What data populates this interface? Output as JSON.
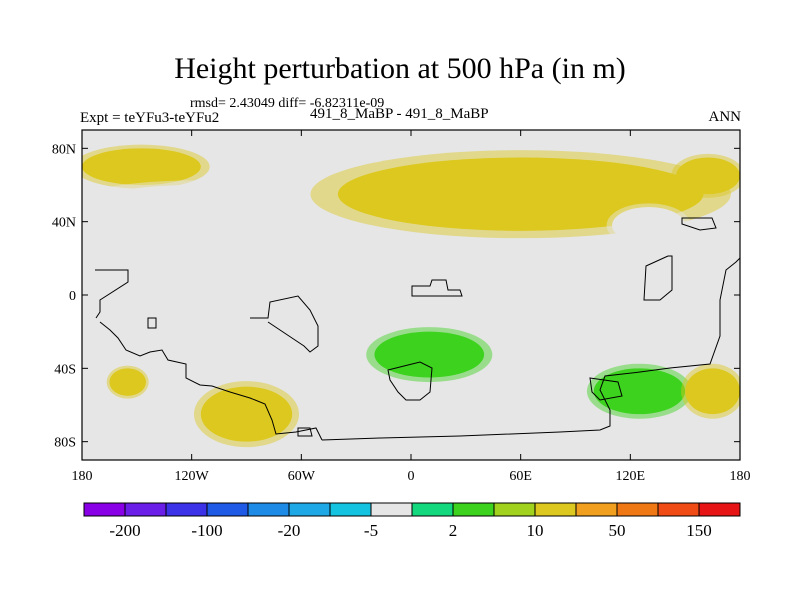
{
  "chart_data": {
    "type": "heatmap",
    "title": "Height perturbation at 500 hPa (in m)",
    "subtitle_stats": "rmsd= 2.43049 diff= -6.82311e-09",
    "left_string": "Expt = teYFu3-teYFu2",
    "center_string": "491_8_MaBP - 491_8_MaBP",
    "right_string": "ANN",
    "x_axis": {
      "range": [
        -180,
        180
      ],
      "ticks": [
        {
          "value": -180,
          "label": "180"
        },
        {
          "value": -120,
          "label": "120W"
        },
        {
          "value": -60,
          "label": "60W"
        },
        {
          "value": 0,
          "label": "0"
        },
        {
          "value": 60,
          "label": "60E"
        },
        {
          "value": 120,
          "label": "120E"
        },
        {
          "value": 180,
          "label": "180"
        }
      ]
    },
    "y_axis": {
      "range": [
        -90,
        90
      ],
      "ticks": [
        {
          "value": 80,
          "label": "80N"
        },
        {
          "value": 40,
          "label": "40N"
        },
        {
          "value": 0,
          "label": "0"
        },
        {
          "value": -40,
          "label": "40S"
        },
        {
          "value": -80,
          "label": "80S"
        }
      ]
    },
    "colorbar": {
      "colors": [
        "#8a00e6",
        "#6a1ee8",
        "#3c32e8",
        "#1e5ae6",
        "#1e8ce6",
        "#1ea8e6",
        "#14c3e0",
        "#e6e6e6",
        "#14d87e",
        "#3cd21e",
        "#a0d21e",
        "#dcc81e",
        "#f0a01e",
        "#f07814",
        "#f04b14",
        "#e61414"
      ],
      "labels": [
        {
          "boundary": 1,
          "label": "-200"
        },
        {
          "boundary": 3,
          "label": "-100"
        },
        {
          "boundary": 5,
          "label": "-20"
        },
        {
          "boundary": 7,
          "label": "-5"
        },
        {
          "boundary": 9,
          "label": "2"
        },
        {
          "boundary": 11,
          "label": "10"
        },
        {
          "boundary": 13,
          "label": "50"
        },
        {
          "boundary": 15,
          "label": "150"
        }
      ]
    },
    "features": [
      {
        "name": "arctic-positive-west",
        "lon": [
          -180,
          -115
        ],
        "lat": [
          60,
          80
        ],
        "level": "10"
      },
      {
        "name": "arctic-negative",
        "lon": [
          -50,
          45
        ],
        "lat": [
          65,
          85
        ],
        "level": "-5"
      },
      {
        "name": "midlat-negative-west",
        "lon": [
          -180,
          -60
        ],
        "lat": [
          35,
          60
        ],
        "level": "-5"
      },
      {
        "name": "midlat-positive-band",
        "lon": [
          -40,
          160
        ],
        "lat": [
          35,
          75
        ],
        "level": "10"
      },
      {
        "name": "ne-pacific-positive",
        "lon": [
          145,
          180
        ],
        "lat": [
          55,
          75
        ],
        "level": "10"
      },
      {
        "name": "npacific-negative",
        "lon": [
          110,
          150
        ],
        "lat": [
          28,
          48
        ],
        "level": "-5"
      },
      {
        "name": "spacific-negative",
        "lon": [
          -145,
          -120
        ],
        "lat": [
          -55,
          -35
        ],
        "level": "-5"
      },
      {
        "name": "south-positive-a",
        "lon": [
          -165,
          -145
        ],
        "lat": [
          -55,
          -40
        ],
        "level": "10"
      },
      {
        "name": "south-positive-b",
        "lon": [
          -115,
          -65
        ],
        "lat": [
          -80,
          -50
        ],
        "level": "10"
      },
      {
        "name": "satlantic-negative",
        "lon": [
          -60,
          -15
        ],
        "lat": [
          -70,
          -40
        ],
        "level": "-5"
      },
      {
        "name": "sindian-negative",
        "lon": [
          40,
          85
        ],
        "lat": [
          -70,
          -45
        ],
        "level": "-5"
      },
      {
        "name": "south-positive-c",
        "lon": [
          -20,
          40
        ],
        "lat": [
          -45,
          -20
        ],
        "level": "2"
      },
      {
        "name": "south-positive-d",
        "lon": [
          100,
          150
        ],
        "lat": [
          -65,
          -40
        ],
        "level": "2"
      },
      {
        "name": "south-positive-e",
        "lon": [
          150,
          180
        ],
        "lat": [
          -65,
          -40
        ],
        "level": "10"
      }
    ]
  }
}
